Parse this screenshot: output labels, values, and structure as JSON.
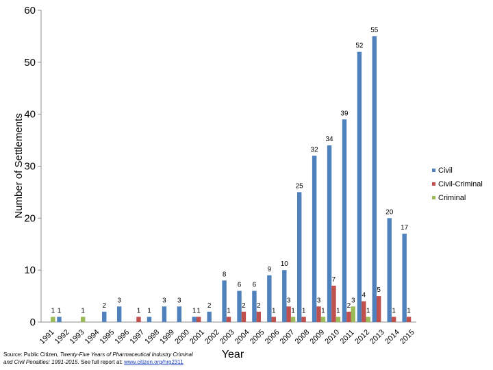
{
  "chart_data": {
    "type": "bar",
    "ylabel": "Number of Settlements",
    "xlabel": "Year",
    "ylim": [
      0,
      60
    ],
    "yticks": [
      0,
      10,
      20,
      30,
      40,
      50,
      60
    ],
    "grid": false,
    "legend_position": "right",
    "categories": [
      "1991",
      "1992",
      "1993",
      "1994",
      "1995",
      "1996",
      "1997",
      "1998",
      "1999",
      "2000",
      "2001",
      "2002",
      "2003",
      "2004",
      "2005",
      "2006",
      "2007",
      "2008",
      "2009",
      "2010",
      "2011",
      "2012",
      "2013",
      "2014",
      "2015"
    ],
    "series": [
      {
        "name": "Civil",
        "color": "#4f81bd",
        "values": [
          null,
          1,
          null,
          null,
          2,
          3,
          null,
          1,
          3,
          3,
          1,
          2,
          8,
          6,
          6,
          9,
          10,
          25,
          32,
          34,
          39,
          52,
          55,
          20,
          17
        ]
      },
      {
        "name": "Civil-Criminal",
        "color": "#c0504d",
        "values": [
          null,
          null,
          null,
          null,
          null,
          null,
          1,
          null,
          null,
          null,
          1,
          null,
          1,
          2,
          2,
          1,
          3,
          1,
          3,
          7,
          2,
          4,
          5,
          1,
          1
        ]
      },
      {
        "name": "Criminal",
        "color": "#9bbb59",
        "values": [
          1,
          null,
          1,
          null,
          null,
          null,
          null,
          null,
          null,
          null,
          null,
          null,
          null,
          null,
          null,
          null,
          1,
          null,
          1,
          1,
          3,
          1,
          null,
          null,
          null
        ]
      }
    ]
  },
  "source": {
    "prefix": "Source: Public Citizen, ",
    "title_line1": "Twenty-Five Years of Pharmaceutical Industry Criminal",
    "title_line2": "and Civil Penalties: 1991-2015",
    "suffix": ". See full report at: ",
    "link_text": "www.citizen.org/hrg2311"
  }
}
